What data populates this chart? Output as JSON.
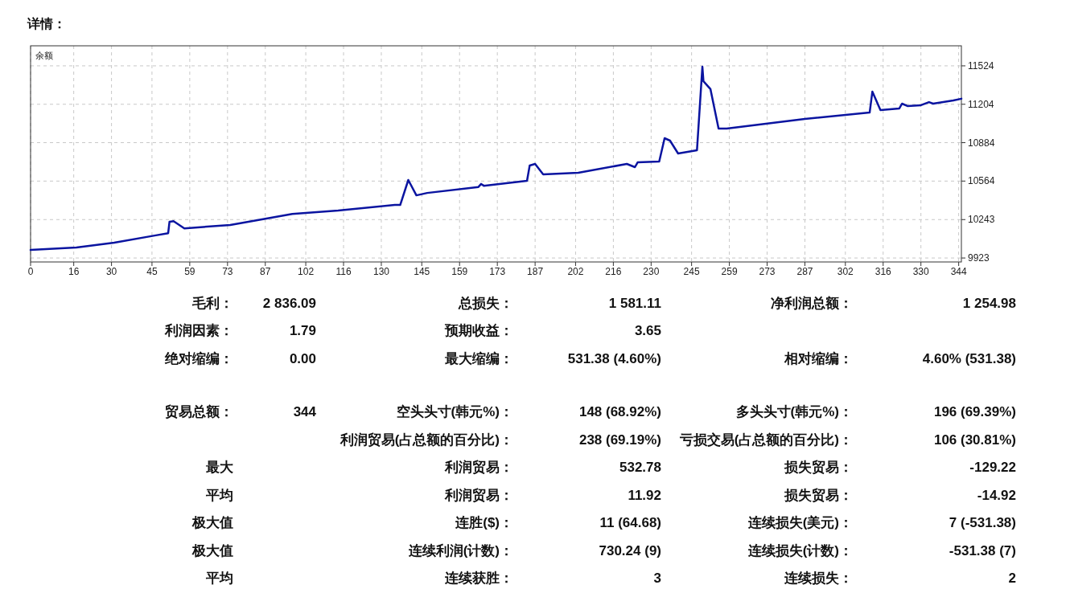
{
  "chart_data": {
    "type": "line",
    "title": "详情：",
    "xlim": [
      0,
      345
    ],
    "xticks": [
      0,
      16,
      30,
      45,
      59,
      73,
      87,
      102,
      116,
      130,
      145,
      159,
      173,
      187,
      202,
      216,
      230,
      245,
      259,
      273,
      287,
      302,
      316,
      330,
      344
    ],
    "ylim": [
      9890,
      11691
    ],
    "yticks": [
      9923,
      10243,
      10564,
      10884,
      11204,
      11524
    ],
    "grid": true,
    "legend": "top left",
    "marker": "none",
    "line_style": "solid",
    "series": [
      {
        "name": "余额",
        "color": "#0a14a0",
        "x": [
          0,
          17,
          31,
          46,
          51,
          51.5,
          53,
          57,
          74,
          87,
          97,
          114,
          135,
          137,
          140,
          143,
          147,
          166,
          167,
          168,
          184,
          185,
          187,
          190,
          203,
          221,
          224,
          225,
          233,
          235,
          237,
          240,
          247,
          249,
          249.4,
          252,
          255,
          258,
          287,
          311,
          312,
          315,
          322,
          323,
          325,
          330,
          333,
          334.5,
          342,
          345
        ],
        "values": [
          9990,
          10010,
          10050,
          10110,
          10130,
          10225,
          10230,
          10170,
          10198,
          10250,
          10290,
          10318,
          10365,
          10365,
          10573,
          10445,
          10465,
          10515,
          10540,
          10525,
          10566,
          10693,
          10707,
          10620,
          10633,
          10707,
          10680,
          10720,
          10727,
          10921,
          10901,
          10794,
          10821,
          11517,
          11396,
          11330,
          11001,
          11001,
          11082,
          11135,
          11309,
          11155,
          11169,
          11209,
          11189,
          11196,
          11222,
          11209,
          11236,
          11250
        ]
      }
    ],
    "annotations": [
      "毛利：",
      "2 836.09",
      "总损失：",
      "1 581.11",
      "净利润总额：",
      "1 254.98",
      "利润因素：",
      "1.79",
      "预期收益：",
      "3.65",
      "绝对缩编：",
      "0.00",
      "最大缩编：",
      "531.38 (4.60%)",
      "相对缩编：",
      "4.60% (531.38)",
      "贸易总额：",
      "344",
      "空头头寸(韩元%)：",
      "148 (68.92%)",
      "多头头寸(韩元%)：",
      "196 (69.39%)",
      "利润贸易(占总额的百分比)：",
      "238 (69.19%)",
      "亏损交易(占总额的百分比)：",
      "106 (30.81%)",
      "最大",
      "利润贸易：",
      "532.78",
      "损失贸易：",
      "-129.22",
      "平均",
      "利润贸易：",
      "11.92",
      "损失贸易：",
      "-14.92",
      "极大值",
      "连胜($)：",
      "11 (64.68)",
      "连续损失(美元)：",
      "7 (-531.38)",
      "极大值",
      "连续利润(计数)：",
      "730.24 (9)",
      "连续损失(计数)：",
      "-531.38 (7)",
      "平均",
      "连续获胜：",
      "3",
      "连续损失：",
      "2"
    ]
  }
}
